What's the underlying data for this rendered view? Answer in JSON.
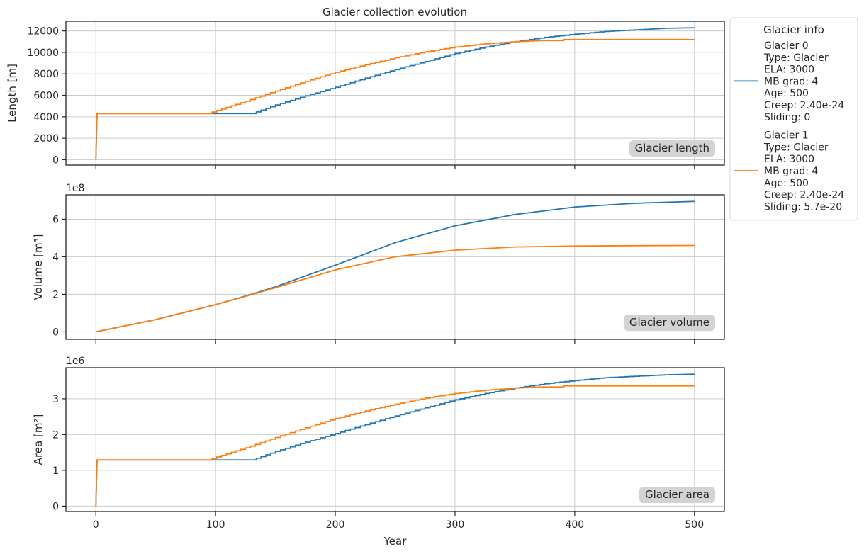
{
  "title": "Glacier collection evolution",
  "colors": {
    "glacier_0": "#1f77b4",
    "glacier_1": "#ff7f0e",
    "grid": "#cccccc",
    "frame": "#262626",
    "tag_bg": "#d3d3d3"
  },
  "legend": {
    "title": "Glacier info",
    "entries": [
      {
        "color": "#1f77b4",
        "lines": [
          "Glacier 0",
          "Type: Glacier",
          "ELA: 3000",
          "MB grad: 4",
          "Age: 500",
          "Creep: 2.40e-24",
          "Sliding: 0"
        ]
      },
      {
        "color": "#ff7f0e",
        "lines": [
          "Glacier 1",
          "Type: Glacier",
          "ELA: 3000",
          "MB grad: 4",
          "Age: 500",
          "Creep: 2.40e-24",
          "Sliding: 5.7e-20"
        ]
      }
    ]
  },
  "chart_data": [
    {
      "type": "line",
      "tag": "Glacier length",
      "ylabel": "Length [m]",
      "xlabel": "",
      "offset_text": "",
      "xlim": [
        -25,
        525
      ],
      "ylim": [
        -500,
        12900
      ],
      "xticks": [
        0,
        100,
        200,
        300,
        400,
        500
      ],
      "show_xticklabels": false,
      "yticks": [
        0,
        2000,
        4000,
        6000,
        8000,
        10000,
        12000
      ],
      "ytick_labels": [
        "0",
        "2000",
        "4000",
        "6000",
        "8000",
        "10000",
        "12000"
      ],
      "grid": true,
      "step": true,
      "series": [
        {
          "color": "#1f77b4",
          "x": [
            0,
            1,
            130,
            150,
            175,
            200,
            225,
            250,
            275,
            300,
            325,
            350,
            375,
            400,
            425,
            450,
            475,
            500
          ],
          "y": [
            0,
            4300,
            4300,
            5100,
            5950,
            6750,
            7600,
            8400,
            9150,
            9900,
            10500,
            11000,
            11400,
            11700,
            11950,
            12100,
            12250,
            12300
          ]
        },
        {
          "color": "#ff7f0e",
          "x": [
            0,
            1,
            93,
            125,
            150,
            175,
            200,
            225,
            250,
            275,
            300,
            325,
            350,
            370,
            390,
            391,
            500
          ],
          "y": [
            0,
            4300,
            4300,
            5450,
            6400,
            7300,
            8150,
            8850,
            9500,
            10050,
            10500,
            10800,
            11000,
            11100,
            11100,
            11200,
            11200
          ]
        }
      ]
    },
    {
      "type": "line",
      "tag": "Glacier volume",
      "ylabel": "Volume [m³]",
      "xlabel": "",
      "offset_text": "1e8",
      "xlim": [
        -25,
        525
      ],
      "ylim": [
        -0.4,
        7.3
      ],
      "xticks": [
        0,
        100,
        200,
        300,
        400,
        500
      ],
      "show_xticklabels": false,
      "yticks": [
        0,
        2,
        4,
        6
      ],
      "ytick_labels": [
        "0",
        "2",
        "4",
        "6"
      ],
      "grid": true,
      "step": false,
      "series": [
        {
          "color": "#1f77b4",
          "x": [
            0,
            50,
            100,
            130,
            150,
            200,
            250,
            300,
            350,
            400,
            450,
            500
          ],
          "y": [
            0,
            0.65,
            1.45,
            2.0,
            2.4,
            3.55,
            4.75,
            5.65,
            6.25,
            6.65,
            6.85,
            6.95
          ]
        },
        {
          "color": "#ff7f0e",
          "x": [
            0,
            50,
            100,
            130,
            150,
            200,
            250,
            300,
            350,
            400,
            450,
            500
          ],
          "y": [
            0,
            0.65,
            1.45,
            1.98,
            2.35,
            3.3,
            4.0,
            4.35,
            4.52,
            4.57,
            4.59,
            4.6
          ]
        }
      ]
    },
    {
      "type": "line",
      "tag": "Glacier area",
      "ylabel": "Area [m²]",
      "xlabel": "Year",
      "offset_text": "1e6",
      "xlim": [
        -25,
        525
      ],
      "ylim": [
        -0.15,
        3.87
      ],
      "xticks": [
        0,
        100,
        200,
        300,
        400,
        500
      ],
      "show_xticklabels": true,
      "xtick_labels": [
        "0",
        "100",
        "200",
        "300",
        "400",
        "500"
      ],
      "yticks": [
        0,
        1,
        2,
        3
      ],
      "ytick_labels": [
        "0",
        "1",
        "2",
        "3"
      ],
      "grid": true,
      "step": true,
      "series": [
        {
          "color": "#1f77b4",
          "x": [
            0,
            1,
            130,
            150,
            175,
            200,
            225,
            250,
            275,
            300,
            325,
            350,
            375,
            400,
            425,
            450,
            475,
            500
          ],
          "y": [
            0,
            1.29,
            1.29,
            1.53,
            1.79,
            2.03,
            2.28,
            2.52,
            2.75,
            2.97,
            3.15,
            3.3,
            3.42,
            3.51,
            3.59,
            3.63,
            3.67,
            3.69
          ]
        },
        {
          "color": "#ff7f0e",
          "x": [
            0,
            1,
            93,
            125,
            150,
            175,
            200,
            225,
            250,
            275,
            300,
            325,
            350,
            370,
            390,
            391,
            500
          ],
          "y": [
            0,
            1.29,
            1.29,
            1.63,
            1.92,
            2.19,
            2.45,
            2.66,
            2.85,
            3.02,
            3.15,
            3.24,
            3.3,
            3.33,
            3.33,
            3.36,
            3.36
          ]
        }
      ]
    }
  ]
}
